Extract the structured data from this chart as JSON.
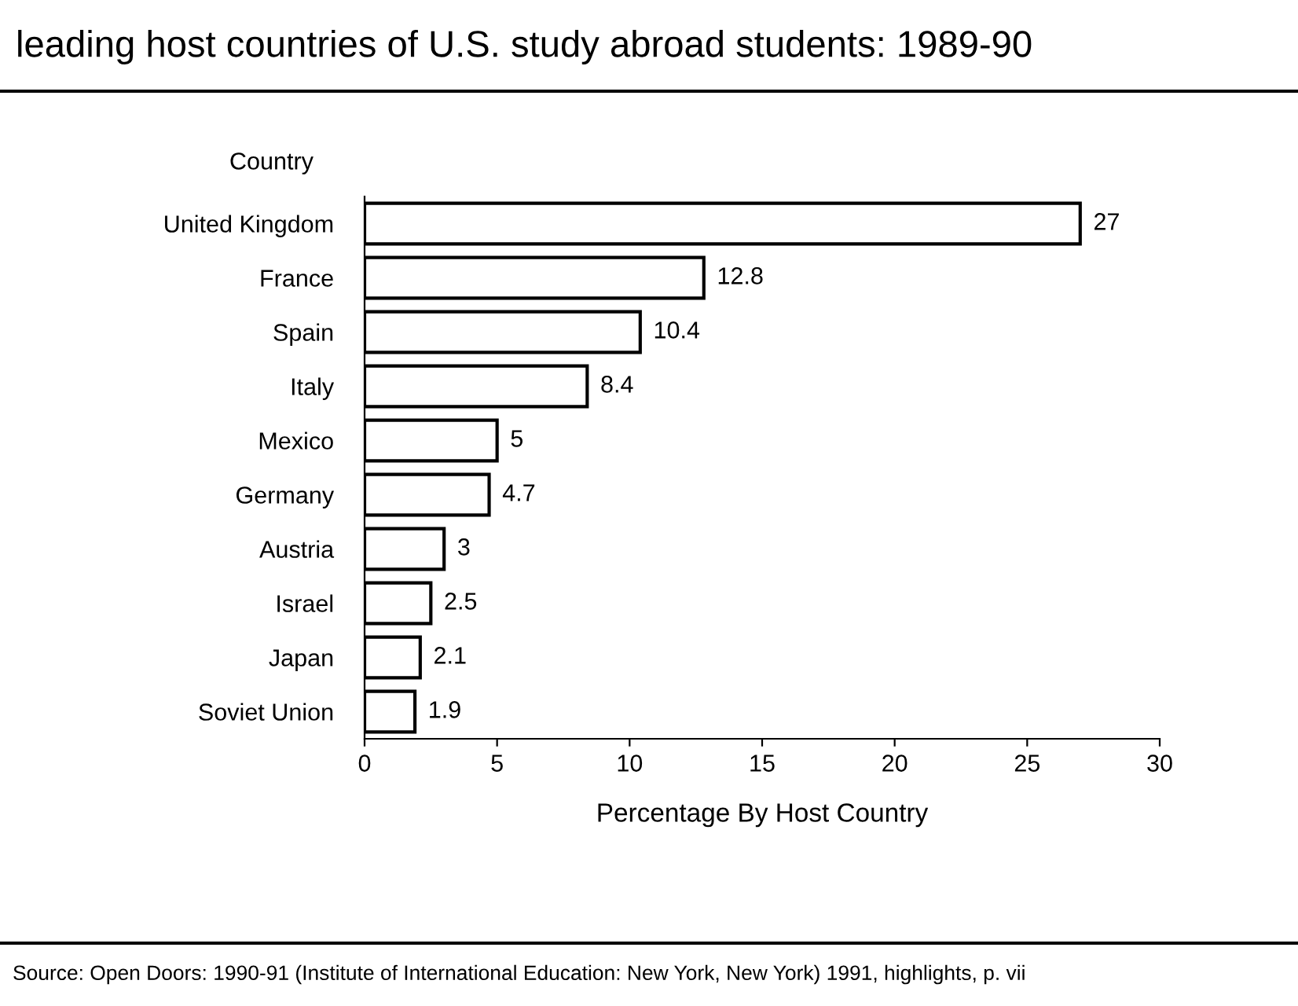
{
  "chart_data": {
    "type": "bar",
    "orientation": "horizontal",
    "title": "leading host countries of U.S. study abroad students: 1989-90",
    "ylabel": "Country",
    "xlabel": "Percentage By Host Country",
    "categories": [
      "United Kingdom",
      "France",
      "Spain",
      "Italy",
      "Mexico",
      "Germany",
      "Austria",
      "Israel",
      "Japan",
      "Soviet Union"
    ],
    "values": [
      27,
      12.8,
      10.4,
      8.4,
      5,
      4.7,
      3,
      2.5,
      2.1,
      1.9
    ],
    "color": "#ffffff",
    "data_labels": true,
    "xlim": [
      0,
      30
    ],
    "xticks": [
      0,
      5,
      10,
      15,
      20,
      25,
      30
    ],
    "grid": false,
    "annotations": [
      "Source: Open Doors: 1990-91 (Institute of International Education: New York, New York) 1991, highlights, p. vii"
    ]
  }
}
